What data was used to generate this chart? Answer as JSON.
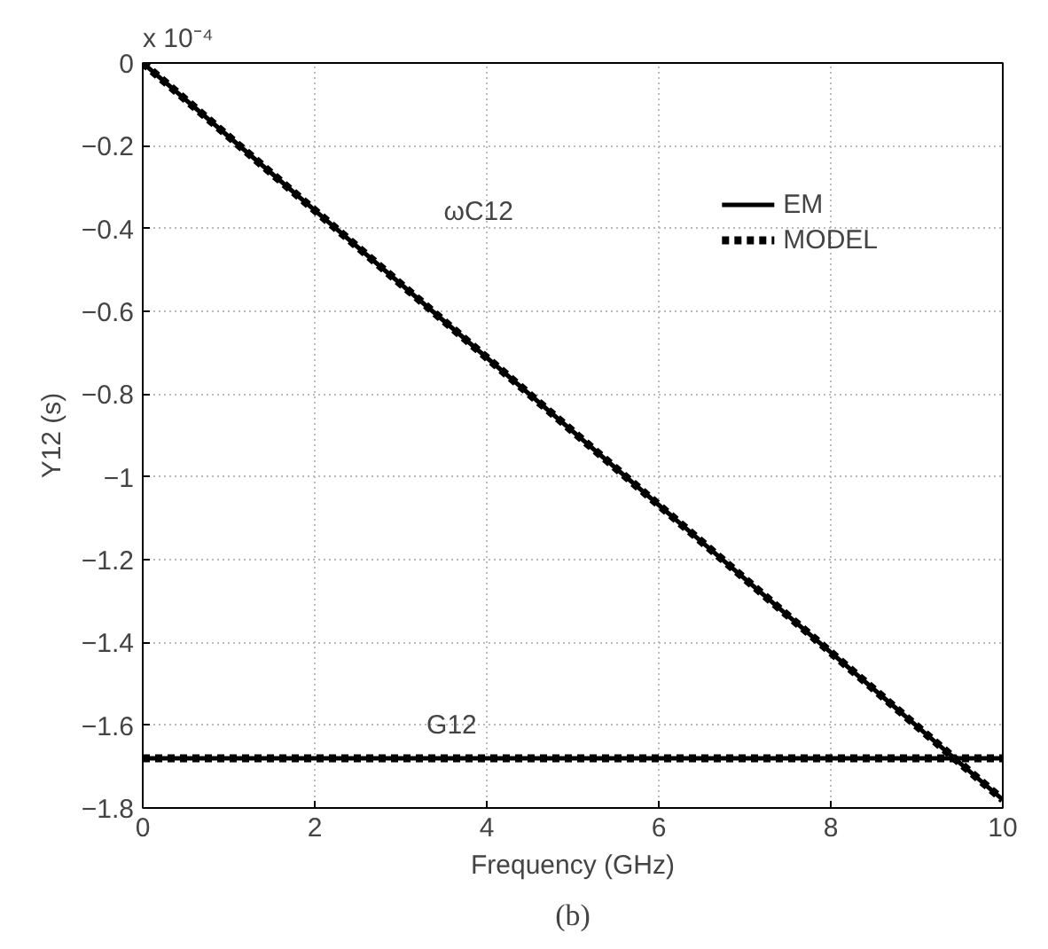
{
  "chart_data": {
    "type": "line",
    "xlabel": "Frequency (GHz)",
    "ylabel": "Y12 (s)",
    "xlim": [
      0,
      10
    ],
    "ylim": [
      -1.8,
      0
    ],
    "xticks": [
      0,
      2,
      4,
      6,
      8,
      10
    ],
    "yticks": [
      0,
      -0.2,
      -0.4,
      -0.6,
      -0.8,
      -1,
      -1.2,
      -1.4,
      -1.6,
      -1.8
    ],
    "grid": true,
    "legend": "top right",
    "x": [
      0,
      10
    ],
    "series": [
      {
        "name": "EM",
        "color": "#000000",
        "line_style": "solid",
        "values": [
          0,
          -1.78
        ]
      },
      {
        "name": "MODEL",
        "color": "#000000",
        "line_style": "dashed",
        "values": [
          0,
          -1.78
        ]
      },
      {
        "color": "#000000",
        "line_style": "solid",
        "values": [
          -1.68,
          -1.68
        ]
      },
      {
        "color": "#000000",
        "line_style": "dashed",
        "values": [
          -1.68,
          -1.68
        ]
      }
    ],
    "annotations": [
      "ωC12",
      "G12",
      "x 10⁻⁴",
      "(b)"
    ]
  }
}
